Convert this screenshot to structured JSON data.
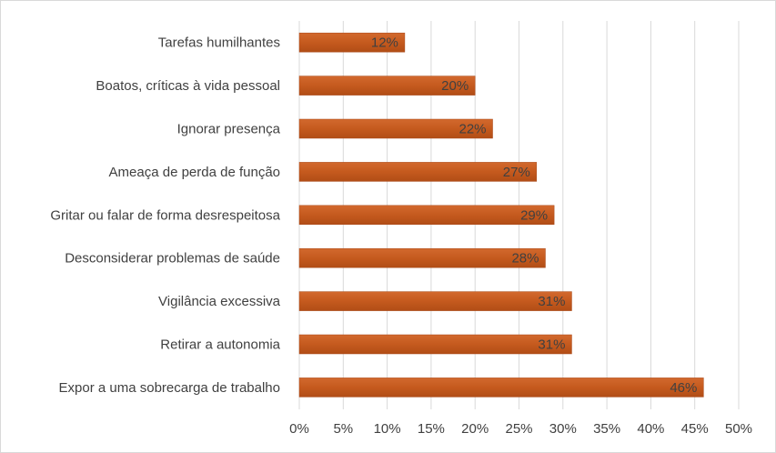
{
  "chart_data": {
    "type": "bar",
    "orientation": "horizontal",
    "title": "",
    "xlabel": "",
    "ylabel": "",
    "categories": [
      "Tarefas humilhantes",
      "Boatos, críticas à vida pessoal",
      "Ignorar presença",
      "Ameaça de perda de função",
      "Gritar ou falar de forma desrespeitosa",
      "Desconsiderar problemas de saúde",
      "Vigilância excessiva",
      "Retirar a autonomia",
      "Expor a uma sobrecarga de trabalho"
    ],
    "values": [
      12,
      20,
      22,
      27,
      29,
      28,
      31,
      31,
      46
    ],
    "data_labels": [
      "12%",
      "20%",
      "22%",
      "27%",
      "29%",
      "28%",
      "31%",
      "31%",
      "46%"
    ],
    "xlim": [
      0,
      50
    ],
    "x_ticks": [
      "0%",
      "5%",
      "10%",
      "15%",
      "20%",
      "25%",
      "30%",
      "35%",
      "40%",
      "45%",
      "50%"
    ],
    "grid": "vertical",
    "legend": "none",
    "bar_color": "#c55a1e"
  }
}
